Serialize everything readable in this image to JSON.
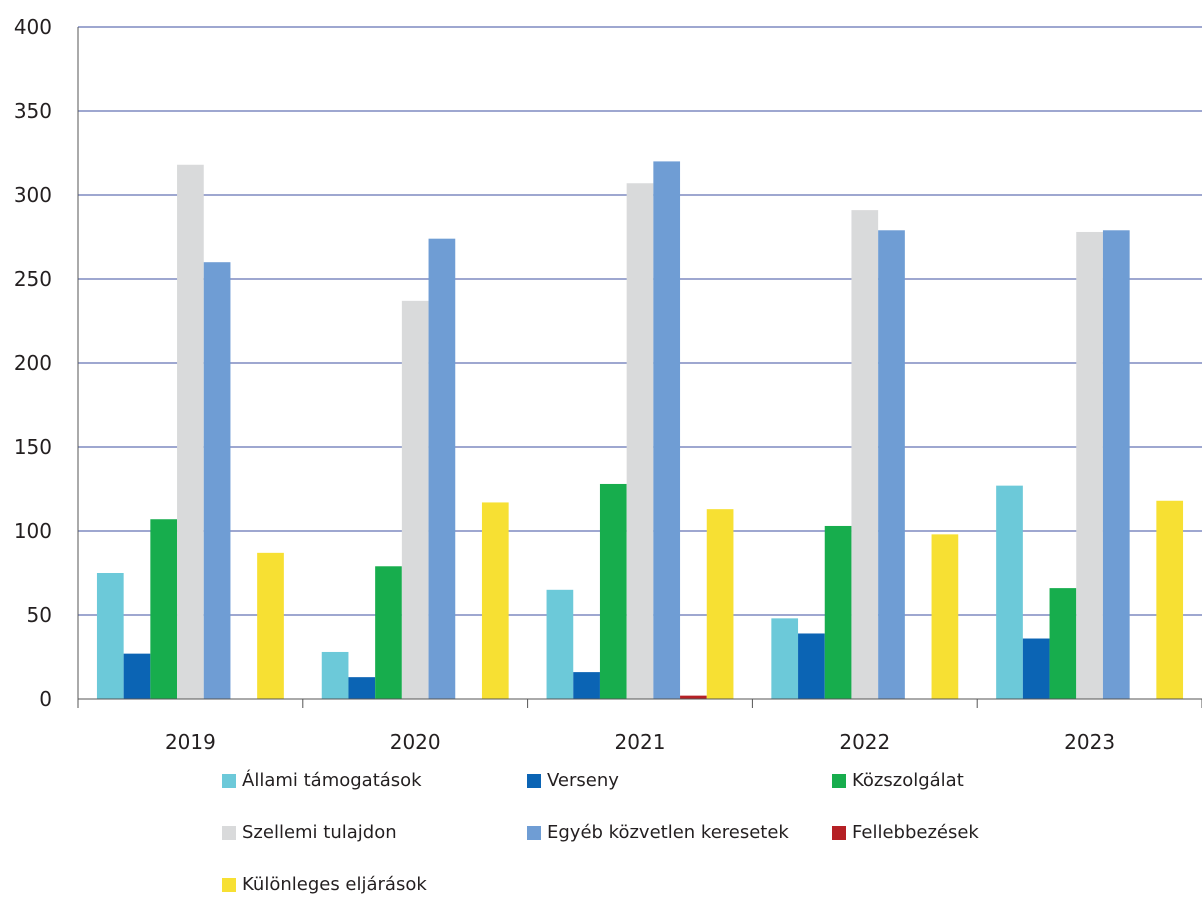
{
  "chart_data": {
    "type": "bar",
    "categories": [
      "2019",
      "2020",
      "2021",
      "2022",
      "2023"
    ],
    "series": [
      {
        "name": "Állami támogatások",
        "color": "#6cc9d9",
        "values": [
          75,
          28,
          65,
          48,
          127
        ]
      },
      {
        "name": "Verseny",
        "color": "#0b64b4",
        "values": [
          27,
          13,
          16,
          39,
          36
        ]
      },
      {
        "name": "Közszolgálat",
        "color": "#17ad4d",
        "values": [
          107,
          79,
          128,
          103,
          66
        ]
      },
      {
        "name": "Szellemi tulajdon",
        "color": "#d9dadb",
        "values": [
          318,
          237,
          307,
          291,
          278
        ]
      },
      {
        "name": "Egyéb közvetlen keresetek",
        "color": "#6f9dd4",
        "values": [
          260,
          274,
          320,
          279,
          279
        ]
      },
      {
        "name": "Fellebbezések",
        "color": "#b52025",
        "values": [
          0,
          0,
          2,
          0,
          0
        ]
      },
      {
        "name": "Különleges eljárások",
        "color": "#f7e033",
        "values": [
          87,
          117,
          113,
          98,
          118
        ]
      }
    ],
    "yticks": [
      "0",
      "50",
      "100",
      "150",
      "200",
      "250",
      "300",
      "350",
      "400"
    ],
    "ylim": [
      0,
      400
    ],
    "grid": true,
    "gridColor": "#3c4fa0",
    "legend_position": "bottom"
  }
}
